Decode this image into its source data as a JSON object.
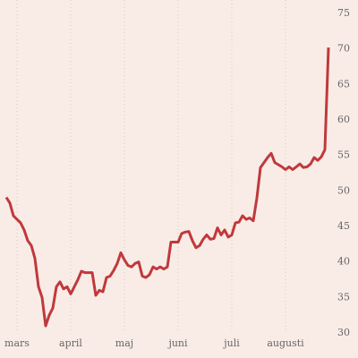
{
  "chart_data": {
    "type": "line",
    "categories": [
      null,
      null,
      null,
      "mars",
      null,
      null,
      null,
      null,
      null,
      null,
      null,
      null,
      null,
      null,
      null,
      null,
      null,
      null,
      "april",
      null,
      null,
      null,
      null,
      null,
      null,
      null,
      null,
      null,
      null,
      null,
      null,
      null,
      null,
      "maj",
      null,
      null,
      null,
      null,
      null,
      null,
      null,
      null,
      null,
      null,
      null,
      null,
      null,
      null,
      "juni",
      null,
      null,
      null,
      null,
      null,
      null,
      null,
      null,
      null,
      null,
      null,
      null,
      null,
      null,
      "juli",
      null,
      null,
      null,
      null,
      null,
      null,
      null,
      null,
      null,
      null,
      null,
      null,
      null,
      null,
      "augusti",
      null,
      null,
      null,
      null,
      null,
      null,
      null,
      null,
      null,
      null,
      null,
      null
    ],
    "series": [
      {
        "color": "#c0393b",
        "values": [
          49.1,
          48.3,
          46.5,
          46,
          45.5,
          44.5,
          43,
          42.3,
          40.5,
          36.5,
          35,
          31,
          32.5,
          33.5,
          36.5,
          37.2,
          36.2,
          36.5,
          35.5,
          36.5,
          37.5,
          38.7,
          38.5,
          38.5,
          38.5,
          35.3,
          36,
          35.8,
          37.8,
          38,
          38.8,
          39.8,
          41.3,
          40.3,
          39.5,
          39.3,
          39.8,
          40,
          38,
          37.8,
          38.2,
          39.3,
          39,
          39.3,
          39,
          39.3,
          42.8,
          42.8,
          42.8,
          44,
          44.2,
          44.3,
          43,
          42,
          42.3,
          43.2,
          43.8,
          43.2,
          43.3,
          44.8,
          43.8,
          44.5,
          43.5,
          43.8,
          45.5,
          45.6,
          46.5,
          46,
          46.2,
          45.8,
          49,
          53.3,
          54,
          54.7,
          55.3,
          54,
          53.7,
          53.4,
          53,
          53.4,
          53,
          53.4,
          53.8,
          53.3,
          53.4,
          53.8,
          54.7,
          54.3,
          54.8,
          55.8,
          70.2
        ]
      }
    ],
    "ylim": [
      30,
      75
    ],
    "yticks": [
      30,
      35,
      40,
      45,
      50,
      55,
      60,
      65,
      70,
      75
    ],
    "grid": true
  }
}
